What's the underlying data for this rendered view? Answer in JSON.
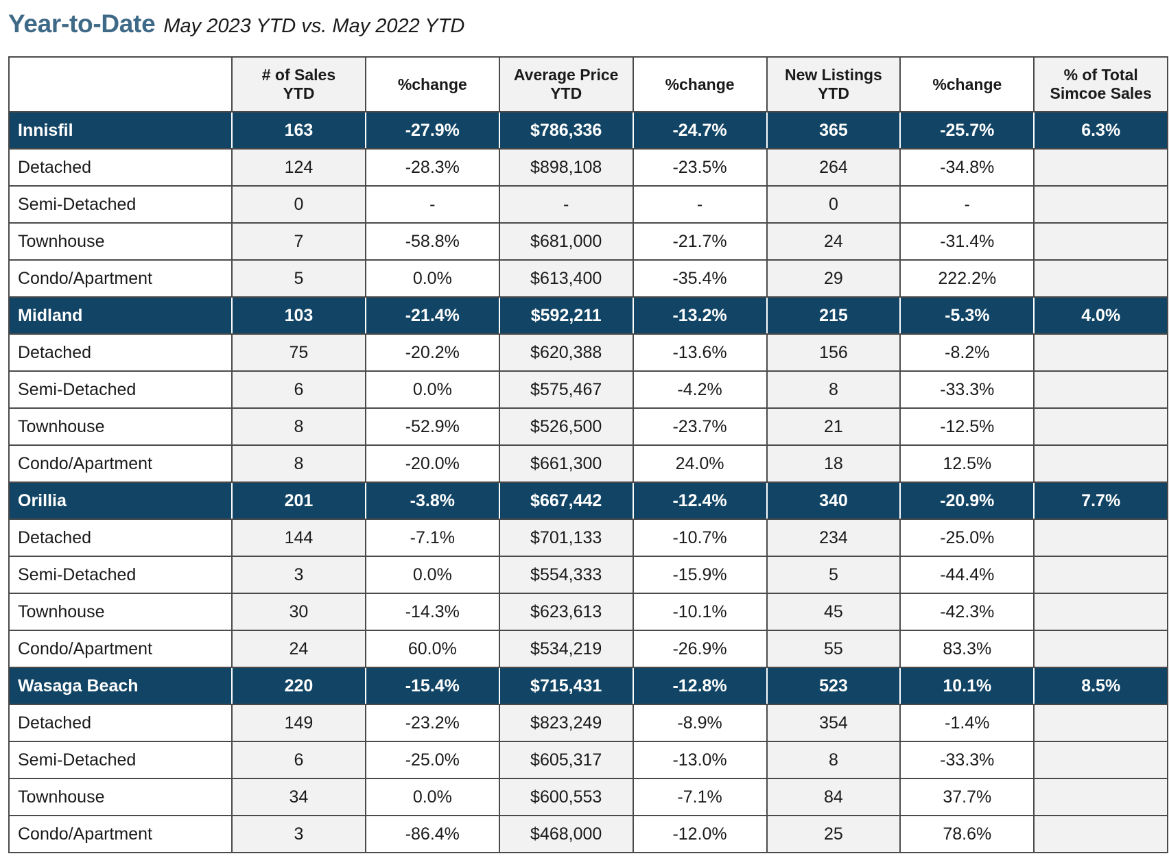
{
  "title": {
    "main": "Year-to-Date",
    "sub": "May 2023 YTD vs. May 2022 YTD"
  },
  "columns": [
    "",
    "# of Sales\nYTD",
    "%change",
    "Average Price\nYTD",
    "%change",
    "New Listings\nYTD",
    "%change",
    "% of Total\nSimcoe Sales"
  ],
  "groups": [
    {
      "name": "Innisfil",
      "sales": "163",
      "sales_change": "-27.9%",
      "avg_price": "$786,336",
      "price_change": "-24.7%",
      "listings": "365",
      "listings_change": "-25.7%",
      "share": "6.3%",
      "rows": [
        {
          "type": "Detached",
          "sales": "124",
          "sales_change": "-28.3%",
          "avg_price": "$898,108",
          "price_change": "-23.5%",
          "listings": "264",
          "listings_change": "-34.8%"
        },
        {
          "type": "Semi-Detached",
          "sales": "0",
          "sales_change": "-",
          "avg_price": "-",
          "price_change": "-",
          "listings": "0",
          "listings_change": "-"
        },
        {
          "type": "Townhouse",
          "sales": "7",
          "sales_change": "-58.8%",
          "avg_price": "$681,000",
          "price_change": "-21.7%",
          "listings": "24",
          "listings_change": "-31.4%"
        },
        {
          "type": "Condo/Apartment",
          "sales": "5",
          "sales_change": "0.0%",
          "avg_price": "$613,400",
          "price_change": "-35.4%",
          "listings": "29",
          "listings_change": "222.2%"
        }
      ]
    },
    {
      "name": "Midland",
      "sales": "103",
      "sales_change": "-21.4%",
      "avg_price": "$592,211",
      "price_change": "-13.2%",
      "listings": "215",
      "listings_change": "-5.3%",
      "share": "4.0%",
      "rows": [
        {
          "type": "Detached",
          "sales": "75",
          "sales_change": "-20.2%",
          "avg_price": "$620,388",
          "price_change": "-13.6%",
          "listings": "156",
          "listings_change": "-8.2%"
        },
        {
          "type": "Semi-Detached",
          "sales": "6",
          "sales_change": "0.0%",
          "avg_price": "$575,467",
          "price_change": "-4.2%",
          "listings": "8",
          "listings_change": "-33.3%"
        },
        {
          "type": "Townhouse",
          "sales": "8",
          "sales_change": "-52.9%",
          "avg_price": "$526,500",
          "price_change": "-23.7%",
          "listings": "21",
          "listings_change": "-12.5%"
        },
        {
          "type": "Condo/Apartment",
          "sales": "8",
          "sales_change": "-20.0%",
          "avg_price": "$661,300",
          "price_change": "24.0%",
          "listings": "18",
          "listings_change": "12.5%"
        }
      ]
    },
    {
      "name": "Orillia",
      "sales": "201",
      "sales_change": "-3.8%",
      "avg_price": "$667,442",
      "price_change": "-12.4%",
      "listings": "340",
      "listings_change": "-20.9%",
      "share": "7.7%",
      "rows": [
        {
          "type": "Detached",
          "sales": "144",
          "sales_change": "-7.1%",
          "avg_price": "$701,133",
          "price_change": "-10.7%",
          "listings": "234",
          "listings_change": "-25.0%"
        },
        {
          "type": "Semi-Detached",
          "sales": "3",
          "sales_change": "0.0%",
          "avg_price": "$554,333",
          "price_change": "-15.9%",
          "listings": "5",
          "listings_change": "-44.4%"
        },
        {
          "type": "Townhouse",
          "sales": "30",
          "sales_change": "-14.3%",
          "avg_price": "$623,613",
          "price_change": "-10.1%",
          "listings": "45",
          "listings_change": "-42.3%"
        },
        {
          "type": "Condo/Apartment",
          "sales": "24",
          "sales_change": "60.0%",
          "avg_price": "$534,219",
          "price_change": "-26.9%",
          "listings": "55",
          "listings_change": "83.3%"
        }
      ]
    },
    {
      "name": "Wasaga Beach",
      "sales": "220",
      "sales_change": "-15.4%",
      "avg_price": "$715,431",
      "price_change": "-12.8%",
      "listings": "523",
      "listings_change": "10.1%",
      "share": "8.5%",
      "rows": [
        {
          "type": "Detached",
          "sales": "149",
          "sales_change": "-23.2%",
          "avg_price": "$823,249",
          "price_change": "-8.9%",
          "listings": "354",
          "listings_change": "-1.4%"
        },
        {
          "type": "Semi-Detached",
          "sales": "6",
          "sales_change": "-25.0%",
          "avg_price": "$605,317",
          "price_change": "-13.0%",
          "listings": "8",
          "listings_change": "-33.3%"
        },
        {
          "type": "Townhouse",
          "sales": "34",
          "sales_change": "0.0%",
          "avg_price": "$600,553",
          "price_change": "-7.1%",
          "listings": "84",
          "listings_change": "37.7%"
        },
        {
          "type": "Condo/Apartment",
          "sales": "3",
          "sales_change": "-86.4%",
          "avg_price": "$468,000",
          "price_change": "-12.0%",
          "listings": "25",
          "listings_change": "78.6%"
        }
      ]
    }
  ]
}
